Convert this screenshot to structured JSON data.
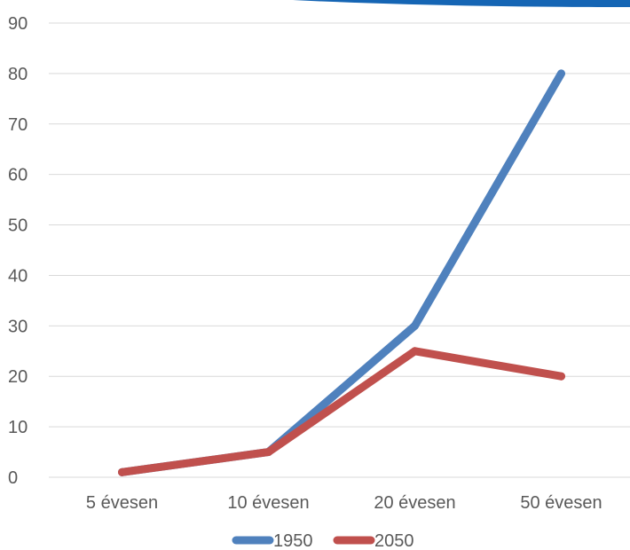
{
  "chart_data": {
    "type": "line",
    "categories": [
      "5 évesen",
      "10 évesen",
      "20 évesen",
      "50 évesen"
    ],
    "series": [
      {
        "name": "1950",
        "values": [
          1,
          5,
          30,
          80
        ],
        "color": "#4f81bd"
      },
      {
        "name": "2050",
        "values": [
          1,
          5,
          25,
          20
        ],
        "color": "#c0504d"
      }
    ],
    "y_ticks": [
      "0",
      "10",
      "20",
      "30",
      "40",
      "50",
      "60",
      "70",
      "80",
      "90"
    ],
    "ylim": [
      0,
      90
    ],
    "grid": true,
    "legend_position": "bottom",
    "xlabel": "",
    "ylabel": "",
    "title": ""
  },
  "decoration": {
    "banner_color": "#1565b4"
  }
}
